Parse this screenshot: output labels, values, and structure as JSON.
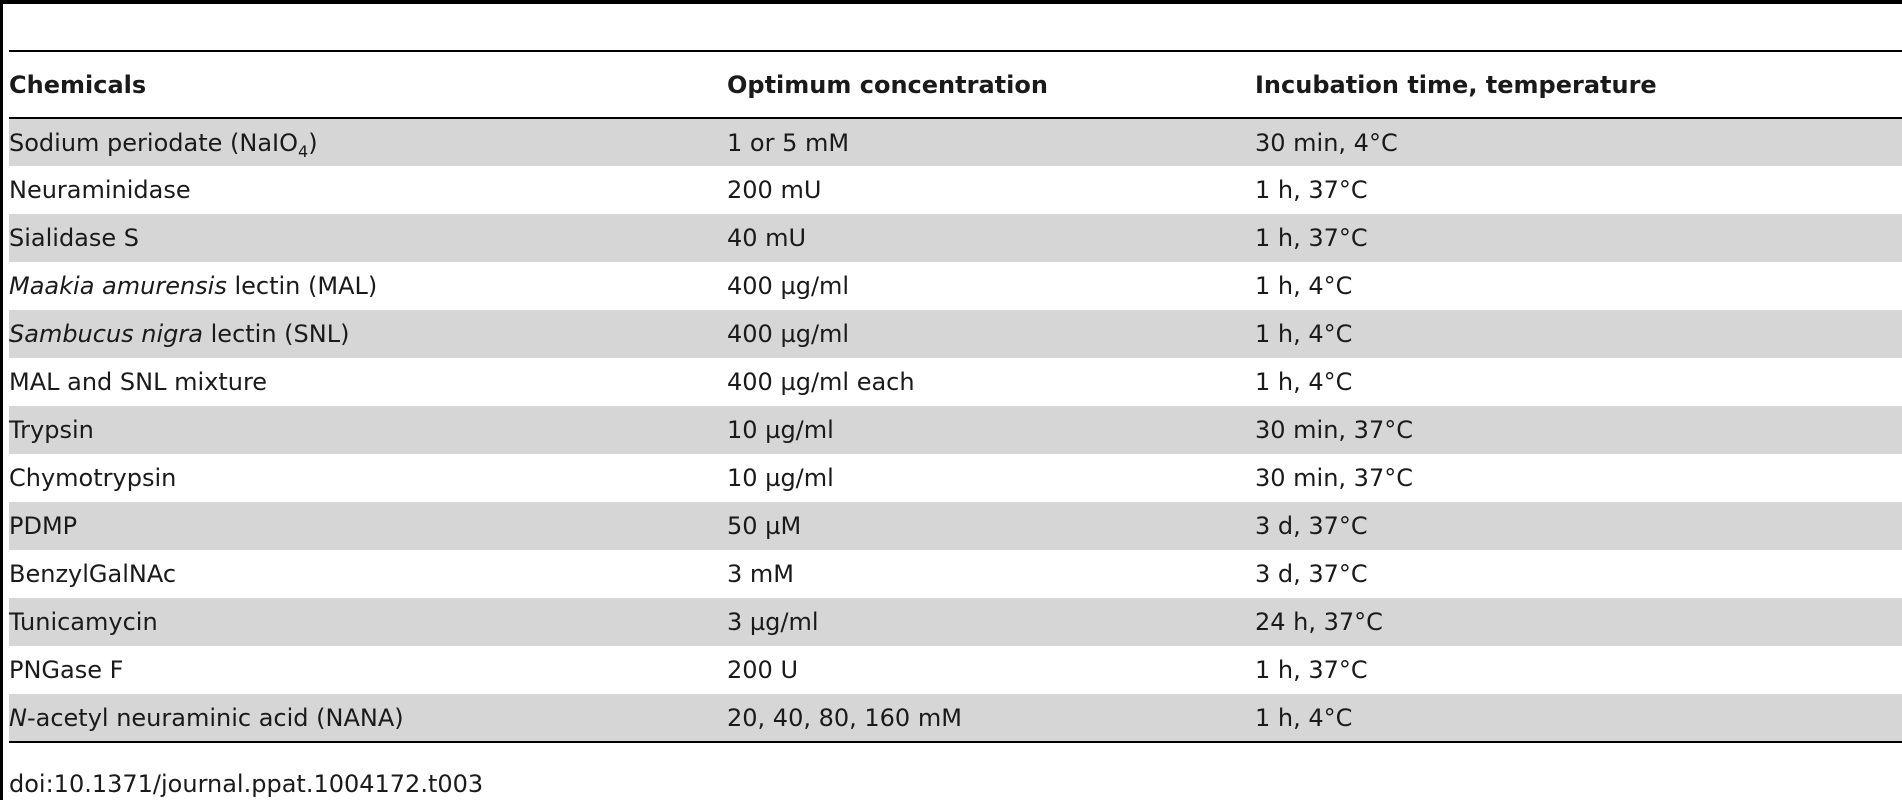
{
  "table": {
    "headers": [
      "Chemicals",
      "Optimum concentration",
      "Incubation time, temperature"
    ],
    "rows": [
      {
        "chemical": {
          "before": "Sodium periodate (NaIO",
          "sub": "4",
          "after": ")"
        },
        "concentration": "1 or 5 mM",
        "incubation": "30 min, 4°C"
      },
      {
        "chemical": {
          "plain": "Neuraminidase"
        },
        "concentration": "200 mU",
        "incubation": "1 h, 37°C"
      },
      {
        "chemical": {
          "plain": "Sialidase S"
        },
        "concentration": "40 mU",
        "incubation": "1 h, 37°C"
      },
      {
        "chemical": {
          "italic": "Maakia amurensis",
          "rest": " lectin (MAL)"
        },
        "concentration": "400 µg/ml",
        "incubation": "1 h, 4°C"
      },
      {
        "chemical": {
          "italic": "Sambucus nigra",
          "rest": " lectin (SNL)"
        },
        "concentration": "400 µg/ml",
        "incubation": "1 h, 4°C"
      },
      {
        "chemical": {
          "plain": "MAL and SNL mixture"
        },
        "concentration": "400 µg/ml each",
        "incubation": "1 h, 4°C"
      },
      {
        "chemical": {
          "plain": "Trypsin"
        },
        "concentration": "10 µg/ml",
        "incubation": "30 min, 37°C"
      },
      {
        "chemical": {
          "plain": "Chymotrypsin"
        },
        "concentration": "10 µg/ml",
        "incubation": "30 min, 37°C"
      },
      {
        "chemical": {
          "plain": "PDMP"
        },
        "concentration": "50 µM",
        "incubation": "3 d, 37°C"
      },
      {
        "chemical": {
          "plain": "BenzylGalNAc"
        },
        "concentration": "3 mM",
        "incubation": "3 d, 37°C"
      },
      {
        "chemical": {
          "plain": "Tunicamycin"
        },
        "concentration": "3 µg/ml",
        "incubation": "24 h, 37°C"
      },
      {
        "chemical": {
          "plain": "PNGase F"
        },
        "concentration": "200 U",
        "incubation": "1 h, 37°C"
      },
      {
        "chemical": {
          "italic": "N",
          "rest": "-acetyl neuraminic acid (NANA)"
        },
        "concentration": "20, 40, 80, 160 mM",
        "incubation": "1 h, 4°C"
      }
    ]
  },
  "caption": "doi:10.1371/journal.ppat.1004172.t003",
  "colors": {
    "stripe": "#d6d6d6",
    "rule": "#000000",
    "text": "#1a1a1a"
  }
}
